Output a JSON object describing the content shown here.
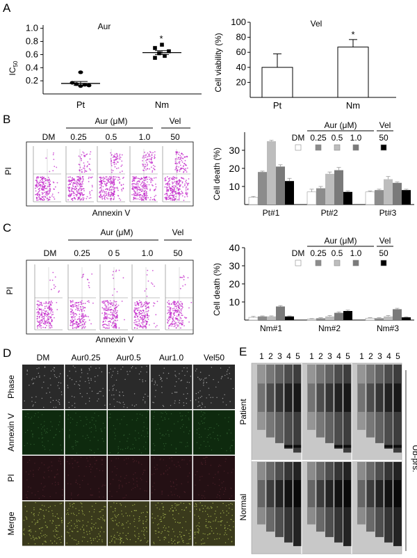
{
  "panels": {
    "A": "A",
    "B": "B",
    "C": "C",
    "D": "D",
    "E": "E"
  },
  "panelA": {
    "left": {
      "title": "Aur",
      "ylabel": "IC",
      "ylabel_sub": "50",
      "yticks": [
        "1.0",
        "0.8",
        "0.6",
        "0.4",
        "0.2"
      ],
      "categories": [
        "Pt",
        "Nm"
      ],
      "star": "*"
    },
    "right": {
      "title": "Vel",
      "ylabel": "Cell viability (%)",
      "yticks": [
        "100",
        "80",
        "60",
        "40",
        "20"
      ],
      "categories": [
        "Pt",
        "Nm"
      ],
      "star": "*"
    }
  },
  "panelB": {
    "flow": {
      "dm": "DM",
      "aur_group": "Aur (μM)",
      "vel_group": "Vel",
      "conc": [
        "0.25",
        "0.5",
        "1.0"
      ],
      "vel_conc": "50",
      "ylabel": "PI",
      "xlabel": "Annexin V"
    },
    "bar": {
      "ylabel": "Cell death (%)",
      "yticks": [
        "30",
        "20",
        "10"
      ],
      "aur_group": "Aur (μM)",
      "vel_group": "Vel",
      "legend": [
        "DM",
        "0.25",
        "0.5",
        "1.0",
        "50"
      ],
      "groups": [
        "Pt#1",
        "Pt#2",
        "Pt#3"
      ]
    }
  },
  "panelC": {
    "flow": {
      "dm": "DM",
      "aur_group": "Aur (μM)",
      "vel_group": "Vel",
      "conc": [
        "0.25",
        "0 5",
        "1.0"
      ],
      "vel_conc": "50",
      "ylabel": "PI",
      "xlabel": "Annexin V"
    },
    "bar": {
      "ylabel": "Cell death (%)",
      "yticks": [
        "40",
        "30",
        "20",
        "10"
      ],
      "aur_group": "Aur (μM)",
      "vel_group": "Vel",
      "legend": [
        "DM",
        "0.25",
        "0.5",
        "1.0",
        "50"
      ],
      "groups": [
        "Nm#1",
        "Nm#2",
        "Nm#3"
      ]
    }
  },
  "panelD": {
    "cols": [
      "DM",
      "Aur0.25",
      "Aur0.5",
      "Aur1.0",
      "Vel50"
    ],
    "rows": [
      "Phase",
      "Annexin V",
      "PI",
      "Merge"
    ],
    "row_colors": [
      "#2a2a2a",
      "#0e2a0e",
      "#241014",
      "#3a3a1c"
    ]
  },
  "panelE": {
    "lanes": [
      "1",
      "2",
      "3",
      "4",
      "5"
    ],
    "rows": [
      "Patient",
      "Normal"
    ],
    "side_label": "Ub-prs."
  },
  "chart_data": [
    {
      "type": "scatter",
      "title": "Aur",
      "ylabel": "IC50",
      "ylim": [
        0,
        1.0
      ],
      "categories": [
        "Pt",
        "Nm"
      ],
      "series": [
        {
          "values": [
            [
              0.33,
              0.17,
              0.15,
              0.14,
              0.13,
              0.12
            ],
            [
              0.75,
              0.7,
              0.65,
              0.62,
              0.58,
              0.55
            ]
          ]
        }
      ],
      "means": [
        0.16,
        0.63
      ],
      "sem": [
        0.03,
        0.03
      ],
      "annotation": "*"
    },
    {
      "type": "bar",
      "title": "Vel",
      "ylabel": "Cell viability (%)",
      "ylim": [
        0,
        100
      ],
      "categories": [
        "Pt",
        "Nm"
      ],
      "values": [
        40,
        67
      ],
      "error": [
        18,
        10
      ],
      "annotation": "*"
    },
    {
      "type": "bar",
      "ylabel": "Cell death (%)",
      "ylim": [
        0,
        40
      ],
      "categories": [
        "Pt#1",
        "Pt#2",
        "Pt#3"
      ],
      "colors": [
        "#ffffff",
        "#8c8c8c",
        "#bdbdbd",
        "#7a7a7a",
        "#000000"
      ],
      "series": [
        {
          "name": "DM",
          "values": [
            4,
            7,
            7
          ]
        },
        {
          "name": "0.25",
          "values": [
            18,
            9,
            8
          ]
        },
        {
          "name": "0.5",
          "values": [
            35,
            17,
            14
          ]
        },
        {
          "name": "1.0",
          "values": [
            21,
            19,
            12
          ]
        },
        {
          "name": "50",
          "values": [
            13,
            7,
            8
          ]
        }
      ],
      "error": [
        [
          0.5,
          1.5,
          0.5
        ],
        [
          0.5,
          1.0,
          0.5
        ],
        [
          0.5,
          1.0,
          1.5
        ],
        [
          1.0,
          1.5,
          0.5
        ],
        [
          1.5,
          0.5,
          0.5
        ]
      ]
    },
    {
      "type": "bar",
      "ylabel": "Cell death (%)",
      "ylim": [
        0,
        40
      ],
      "categories": [
        "Nm#1",
        "Nm#2",
        "Nm#3"
      ],
      "colors": [
        "#ffffff",
        "#8c8c8c",
        "#bdbdbd",
        "#7a7a7a",
        "#000000"
      ],
      "series": [
        {
          "name": "DM",
          "values": [
            1.5,
            0.5,
            1
          ]
        },
        {
          "name": "0.25",
          "values": [
            2,
            1,
            1
          ]
        },
        {
          "name": "0.5",
          "values": [
            2,
            2,
            2
          ]
        },
        {
          "name": "1.0",
          "values": [
            7.5,
            4,
            6
          ]
        },
        {
          "name": "50",
          "values": [
            2,
            5,
            1.5
          ]
        }
      ],
      "error": [
        [
          0.5,
          0.3,
          0.3
        ],
        [
          0.3,
          0.3,
          0.3
        ],
        [
          0.3,
          0.5,
          0.5
        ],
        [
          0.5,
          0.5,
          0.5
        ],
        [
          0.3,
          0.5,
          0.3
        ]
      ]
    }
  ]
}
